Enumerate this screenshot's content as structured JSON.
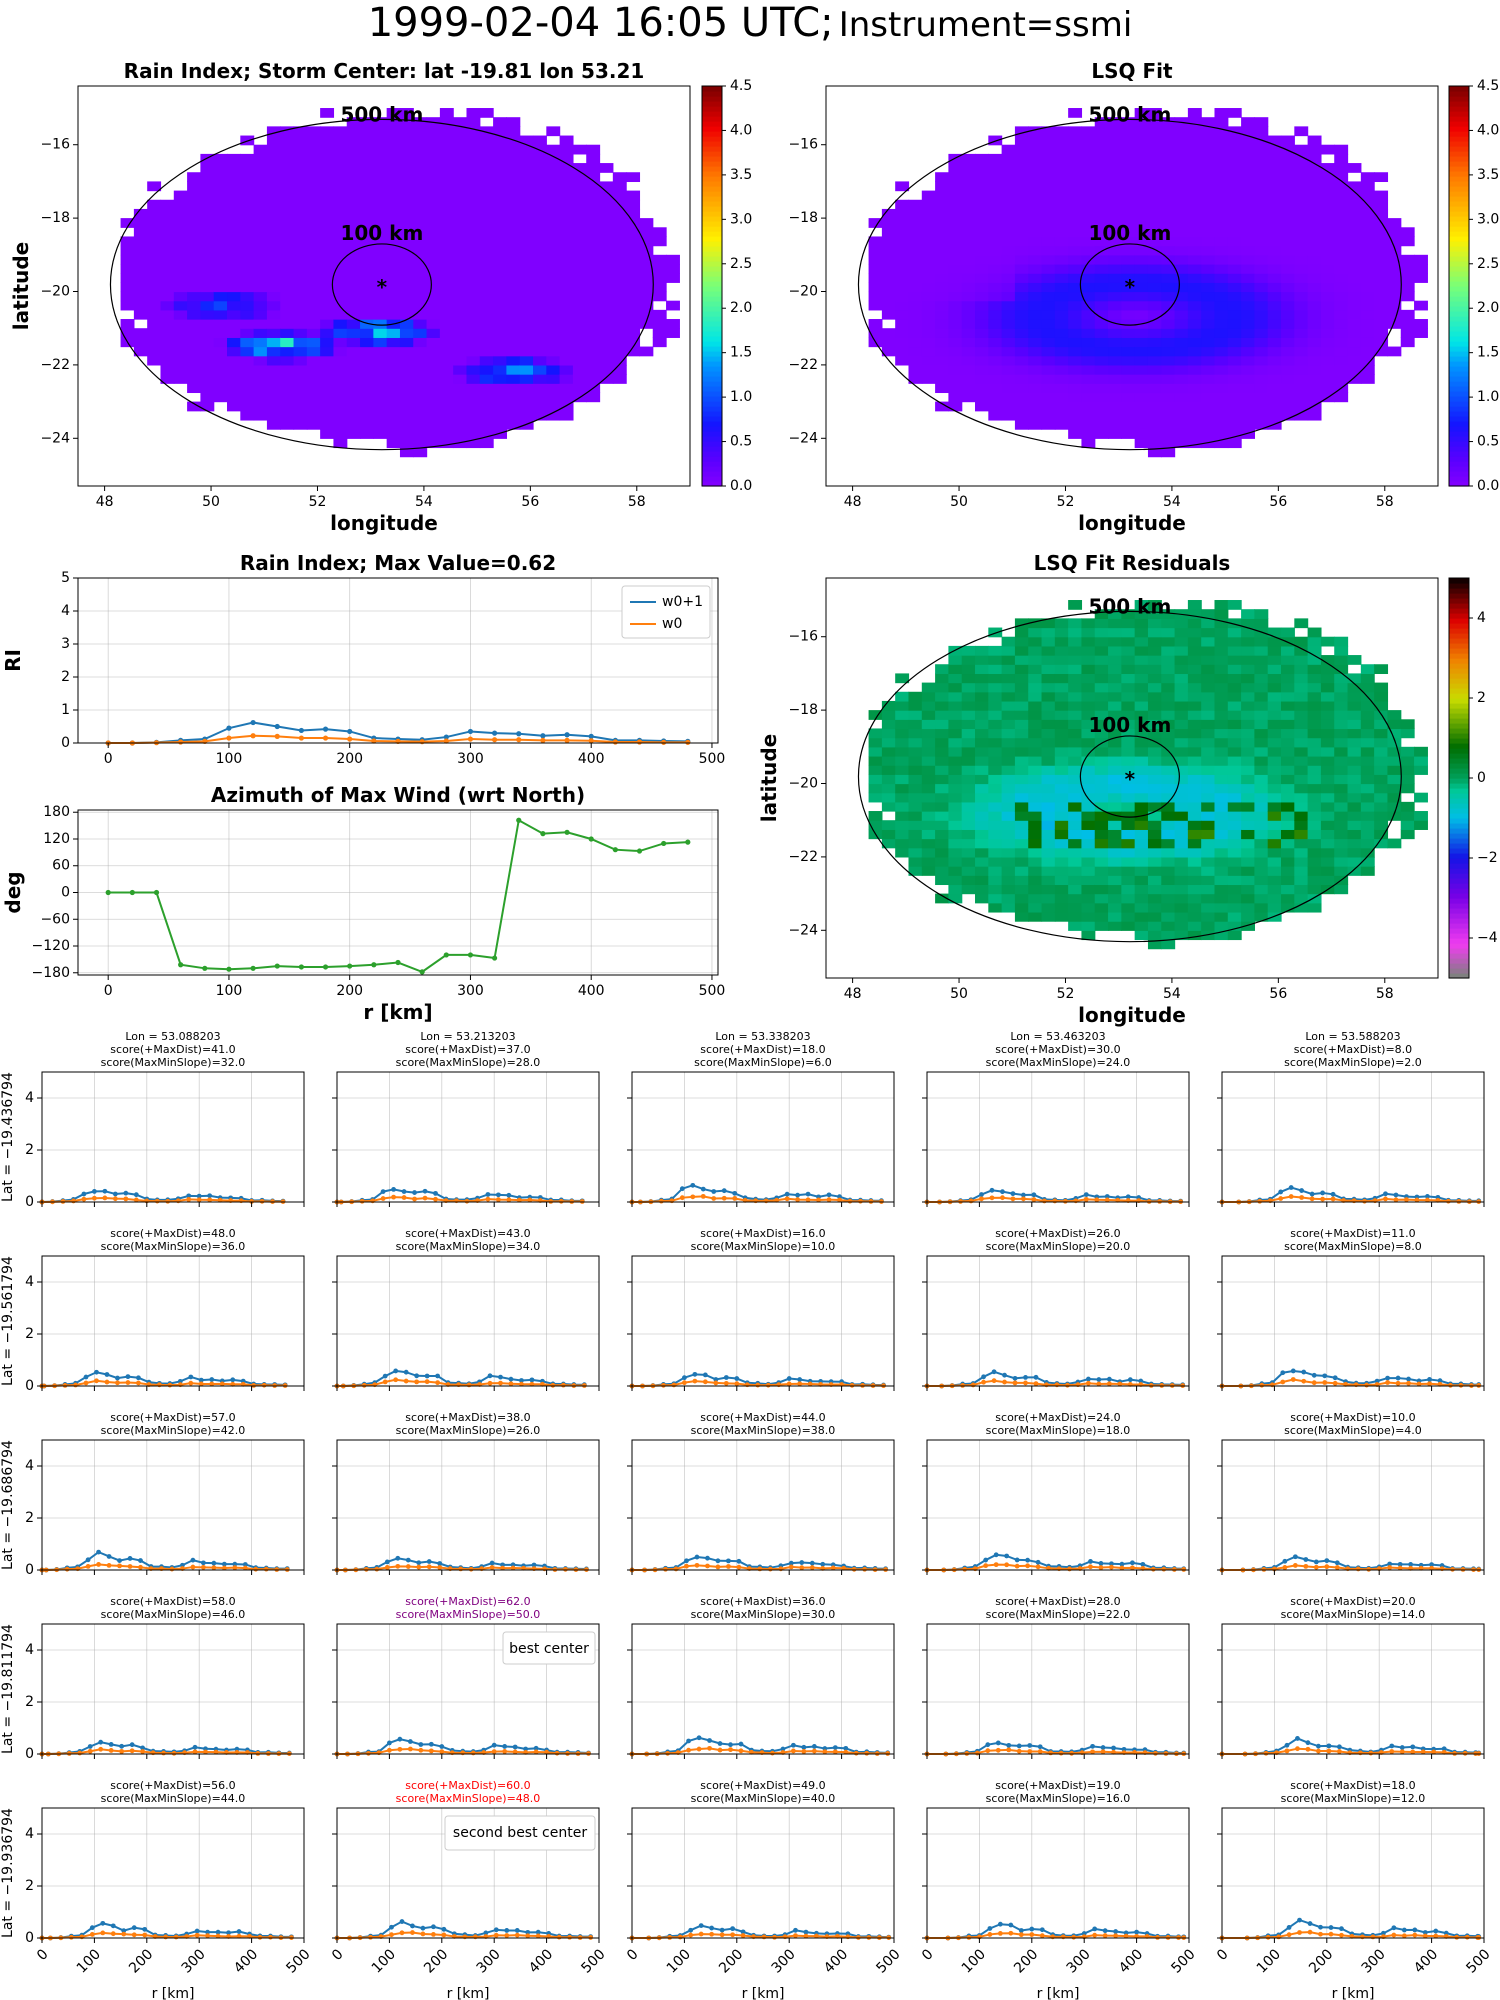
{
  "suptitle": {
    "main": "1999-02-04 16:05 UTC;",
    "sub": "Instrument=ssmi"
  },
  "colors": {
    "w0p1": "#1f77b4",
    "w0": "#ff7f0e",
    "azimuth": "#2ca02c",
    "best": "#800080",
    "second_best": "#ff0000",
    "grid": "#b0b0b0"
  },
  "chart_data": [
    {
      "id": "rain_index_map",
      "type": "heatmap",
      "title": "Rain Index; Storm Center: lat -19.81 lon 53.21",
      "xlabel": "longitude",
      "ylabel": "latitude",
      "xlim": [
        47.5,
        59.0
      ],
      "ylim": [
        -25.3,
        -14.4
      ],
      "xticks": [
        48,
        50,
        52,
        54,
        56,
        58
      ],
      "yticks": [
        -16,
        -18,
        -20,
        -22,
        -24
      ],
      "center": [
        53.21,
        -19.81
      ],
      "circle_labels": [
        "500 km",
        "100 km"
      ],
      "colormap": "jet",
      "vmin": 0.0,
      "vmax": 4.5,
      "colorbar_ticks": [
        "0.0",
        "0.5",
        "1.0",
        "1.5",
        "2.0",
        "2.5",
        "3.0",
        "3.5",
        "4.0",
        "4.5"
      ],
      "hotspots": [
        {
          "lon": 51.2,
          "lat": -21.6,
          "value": 1.6
        },
        {
          "lon": 53.0,
          "lat": -21.2,
          "value": 1.4
        },
        {
          "lon": 55.6,
          "lat": -22.3,
          "value": 1.1
        },
        {
          "lon": 50.1,
          "lat": -20.5,
          "value": 0.8
        }
      ]
    },
    {
      "id": "lsq_fit_map",
      "type": "heatmap",
      "title": "LSQ Fit",
      "xlabel": "longitude",
      "ylabel": "",
      "xlim": [
        47.5,
        59.0
      ],
      "ylim": [
        -25.3,
        -14.4
      ],
      "xticks": [
        48,
        50,
        52,
        54,
        56,
        58
      ],
      "yticks": [],
      "center": [
        53.21,
        -19.81
      ],
      "circle_labels": [
        "500 km",
        "100 km"
      ],
      "colormap": "jet",
      "vmin": 0.0,
      "vmax": 4.5,
      "colorbar_ticks": [
        "0.0",
        "0.5",
        "1.0",
        "1.5",
        "2.0",
        "2.5",
        "3.0",
        "3.5",
        "4.0",
        "4.5"
      ],
      "peak_value": 0.62
    },
    {
      "id": "rain_index_profile",
      "type": "line",
      "title": "Rain Index; Max Value=0.62",
      "xlabel": "",
      "ylabel": "RI",
      "xlim": [
        -25,
        505
      ],
      "ylim": [
        0,
        5
      ],
      "xticks": [
        0,
        100,
        200,
        300,
        400,
        500
      ],
      "yticks": [
        0,
        1,
        2,
        3,
        4,
        5
      ],
      "x": [
        0,
        20,
        40,
        60,
        80,
        100,
        120,
        140,
        160,
        180,
        200,
        220,
        240,
        260,
        280,
        300,
        320,
        340,
        360,
        380,
        400,
        420,
        440,
        460,
        480
      ],
      "series": [
        {
          "name": "w0+1",
          "values": [
            0.0,
            0.0,
            0.02,
            0.08,
            0.12,
            0.45,
            0.62,
            0.5,
            0.38,
            0.42,
            0.35,
            0.15,
            0.12,
            0.1,
            0.18,
            0.35,
            0.3,
            0.28,
            0.22,
            0.25,
            0.2,
            0.08,
            0.08,
            0.06,
            0.05
          ]
        },
        {
          "name": "w0",
          "values": [
            0.0,
            0.0,
            0.01,
            0.03,
            0.05,
            0.15,
            0.22,
            0.2,
            0.15,
            0.15,
            0.12,
            0.06,
            0.05,
            0.04,
            0.06,
            0.12,
            0.1,
            0.1,
            0.08,
            0.08,
            0.07,
            0.03,
            0.03,
            0.02,
            0.02
          ]
        }
      ],
      "legend": "top-right"
    },
    {
      "id": "azimuth_profile",
      "type": "line",
      "title": "Azimuth of Max Wind (wrt North)",
      "xlabel": "r [km]",
      "ylabel": "deg",
      "xlim": [
        -25,
        505
      ],
      "ylim": [
        -185,
        185
      ],
      "xticks": [
        0,
        100,
        200,
        300,
        400,
        500
      ],
      "yticks": [
        180,
        120,
        60,
        0,
        -60,
        -120,
        -180
      ],
      "x": [
        0,
        20,
        40,
        60,
        80,
        100,
        120,
        140,
        160,
        180,
        200,
        220,
        240,
        260,
        280,
        300,
        320,
        340,
        360,
        380,
        400,
        420,
        440,
        460,
        480
      ],
      "series": [
        {
          "name": "",
          "values": [
            0,
            0,
            0,
            -162,
            -170,
            -172,
            -170,
            -165,
            -167,
            -167,
            -165,
            -162,
            -157,
            -178,
            -140,
            -140,
            -147,
            162,
            132,
            135,
            120,
            96,
            93,
            110,
            113
          ]
        }
      ]
    },
    {
      "id": "lsq_residuals_map",
      "type": "heatmap",
      "title": "LSQ Fit Residuals",
      "xlabel": "longitude",
      "ylabel": "latitude",
      "xlim": [
        47.5,
        59.0
      ],
      "ylim": [
        -25.3,
        -14.4
      ],
      "xticks": [
        48,
        50,
        52,
        54,
        56,
        58
      ],
      "yticks": [
        -16,
        -18,
        -20,
        -22,
        -24
      ],
      "center": [
        53.21,
        -19.81
      ],
      "circle_labels": [
        "500 km",
        "100 km"
      ],
      "colormap": "residual",
      "vmin": -5,
      "vmax": 5,
      "colorbar_ticks": [
        "4",
        "2",
        "0",
        "−2",
        "−4"
      ]
    },
    {
      "id": "center_grid",
      "type": "line",
      "xlabel": "r [km]",
      "xlim": [
        0,
        500
      ],
      "ylim": [
        0,
        5
      ],
      "xticks": [
        0,
        100,
        200,
        300,
        400,
        500
      ],
      "yticks": [
        0,
        2,
        4
      ],
      "lons": [
        "Lon = 53.088203",
        "Lon = 53.213203",
        "Lon = 53.338203",
        "Lon = 53.463203",
        "Lon = 53.588203"
      ],
      "lats": [
        "Lat = -19.436794",
        "Lat = -19.561794",
        "Lat = -19.686794",
        "Lat = -19.811794",
        "Lat = -19.936794"
      ],
      "score_maxdist": [
        [
          41.0,
          37.0,
          18.0,
          30.0,
          8.0
        ],
        [
          48.0,
          43.0,
          16.0,
          26.0,
          11.0
        ],
        [
          57.0,
          38.0,
          44.0,
          24.0,
          10.0
        ],
        [
          58.0,
          62.0,
          36.0,
          28.0,
          20.0
        ],
        [
          56.0,
          60.0,
          49.0,
          19.0,
          18.0
        ]
      ],
      "score_maxminslope": [
        [
          32.0,
          28.0,
          6.0,
          24.0,
          2.0
        ],
        [
          36.0,
          34.0,
          10.0,
          20.0,
          8.0
        ],
        [
          42.0,
          26.0,
          38.0,
          18.0,
          4.0
        ],
        [
          46.0,
          50.0,
          30.0,
          22.0,
          14.0
        ],
        [
          44.0,
          48.0,
          40.0,
          16.0,
          12.0
        ]
      ],
      "score_label_a": "score(+MaxDist)=",
      "score_label_b": "score(MaxMinSlope)=",
      "best": {
        "row": 3,
        "col": 1,
        "label": "best center"
      },
      "second_best": {
        "row": 4,
        "col": 1,
        "label": "second best center"
      }
    }
  ]
}
